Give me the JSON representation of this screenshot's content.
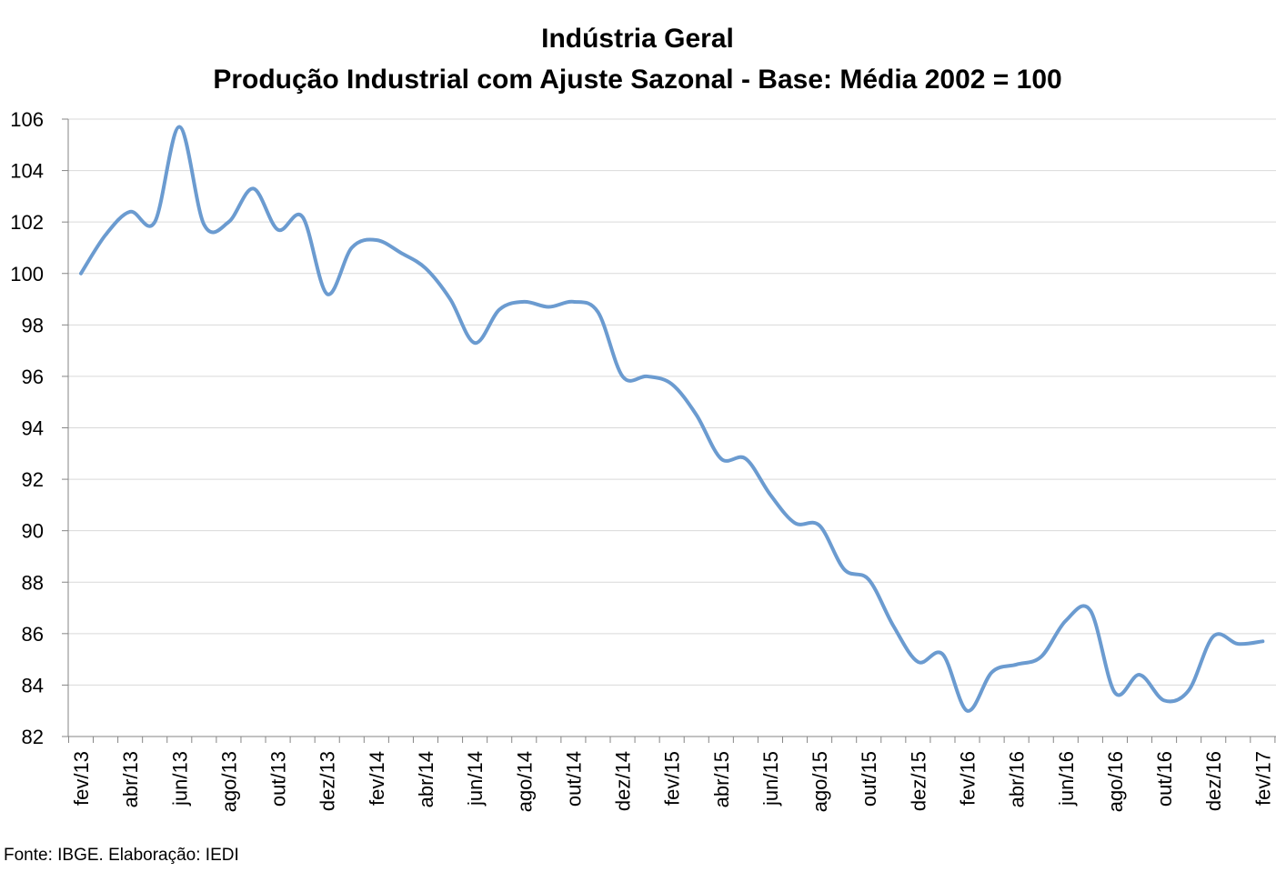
{
  "chart_data": {
    "type": "line",
    "title": "Indústria Geral",
    "subtitle": "Produção Industrial com Ajuste Sazonal - Base: Média 2002 = 100",
    "xlabel": "",
    "ylabel": "",
    "ylim": [
      82,
      106
    ],
    "y_ticks": [
      "82",
      "84",
      "86",
      "88",
      "90",
      "92",
      "94",
      "96",
      "98",
      "100",
      "102",
      "104",
      "106"
    ],
    "grid": true,
    "legend": "none",
    "x": [
      "fev/13",
      "mar/13",
      "abr/13",
      "mai/13",
      "jun/13",
      "jul/13",
      "ago/13",
      "set/13",
      "out/13",
      "nov/13",
      "dez/13",
      "jan/14",
      "fev/14",
      "mar/14",
      "abr/14",
      "mai/14",
      "jun/14",
      "jul/14",
      "ago/14",
      "set/14",
      "out/14",
      "nov/14",
      "dez/14",
      "jan/15",
      "fev/15",
      "mar/15",
      "abr/15",
      "mai/15",
      "jun/15",
      "jul/15",
      "ago/15",
      "set/15",
      "out/15",
      "nov/15",
      "dez/15",
      "jan/16",
      "fev/16",
      "mar/16",
      "abr/16",
      "mai/16",
      "jun/16",
      "jul/16",
      "ago/16",
      "set/16",
      "out/16",
      "nov/16",
      "dez/16",
      "jan/17",
      "fev/17"
    ],
    "x_tick_labels": [
      "fev/13",
      "abr/13",
      "jun/13",
      "ago/13",
      "out/13",
      "dez/13",
      "fev/14",
      "abr/14",
      "jun/14",
      "ago/14",
      "out/14",
      "dez/14",
      "fev/15",
      "abr/15",
      "jun/15",
      "ago/15",
      "out/15",
      "dez/15",
      "fev/16",
      "abr/16",
      "jun/16",
      "ago/16",
      "out/16",
      "dez/16",
      "fev/17"
    ],
    "series": [
      {
        "color": "#6b9bd0",
        "values": [
          100.0,
          101.5,
          102.4,
          102.0,
          105.7,
          101.9,
          102.0,
          103.3,
          101.7,
          102.2,
          99.2,
          101.0,
          101.3,
          100.8,
          100.2,
          99.0,
          97.3,
          98.6,
          98.9,
          98.7,
          98.9,
          98.5,
          96.0,
          96.0,
          95.7,
          94.5,
          92.8,
          92.8,
          91.4,
          90.3,
          90.2,
          88.5,
          88.1,
          86.3,
          84.9,
          85.2,
          83.0,
          84.5,
          84.8,
          85.1,
          86.5,
          86.9,
          83.7,
          84.4,
          83.4,
          83.8,
          85.9,
          85.6,
          85.7
        ]
      }
    ]
  },
  "footer": {
    "source": "Fonte: IBGE. Elaboração: IEDI"
  }
}
